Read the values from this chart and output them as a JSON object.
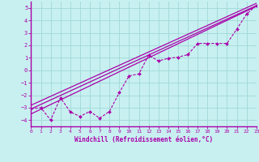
{
  "xlabel": "Windchill (Refroidissement éolien,°C)",
  "background_color": "#c8f0f0",
  "grid_color": "#a0d8d8",
  "line_color": "#aa00aa",
  "border_color": "#aa00aa",
  "xlim": [
    0,
    23
  ],
  "ylim": [
    -4.5,
    5.5
  ],
  "yticks": [
    -4,
    -3,
    -2,
    -1,
    0,
    1,
    2,
    3,
    4,
    5
  ],
  "xticks": [
    0,
    1,
    2,
    3,
    4,
    5,
    6,
    7,
    8,
    9,
    10,
    11,
    12,
    13,
    14,
    15,
    16,
    17,
    18,
    19,
    20,
    21,
    22,
    23
  ],
  "data_x": [
    0,
    1,
    2,
    3,
    4,
    5,
    6,
    7,
    8,
    9,
    10,
    11,
    12,
    13,
    14,
    15,
    16,
    17,
    18,
    19,
    20,
    21,
    22,
    23
  ],
  "data_y": [
    -3.1,
    -3.0,
    -4.0,
    -2.2,
    -3.35,
    -3.7,
    -3.3,
    -3.85,
    -3.3,
    -1.8,
    -0.45,
    -0.3,
    1.2,
    0.75,
    0.95,
    1.05,
    1.25,
    2.15,
    2.15,
    2.15,
    2.15,
    3.3,
    4.5,
    5.2
  ],
  "reg1_slope": 0.375,
  "reg1_intercept": -3.5,
  "reg2_slope": 0.36,
  "reg2_intercept": -3.1,
  "reg3_slope": 0.355,
  "reg3_intercept": -2.8
}
